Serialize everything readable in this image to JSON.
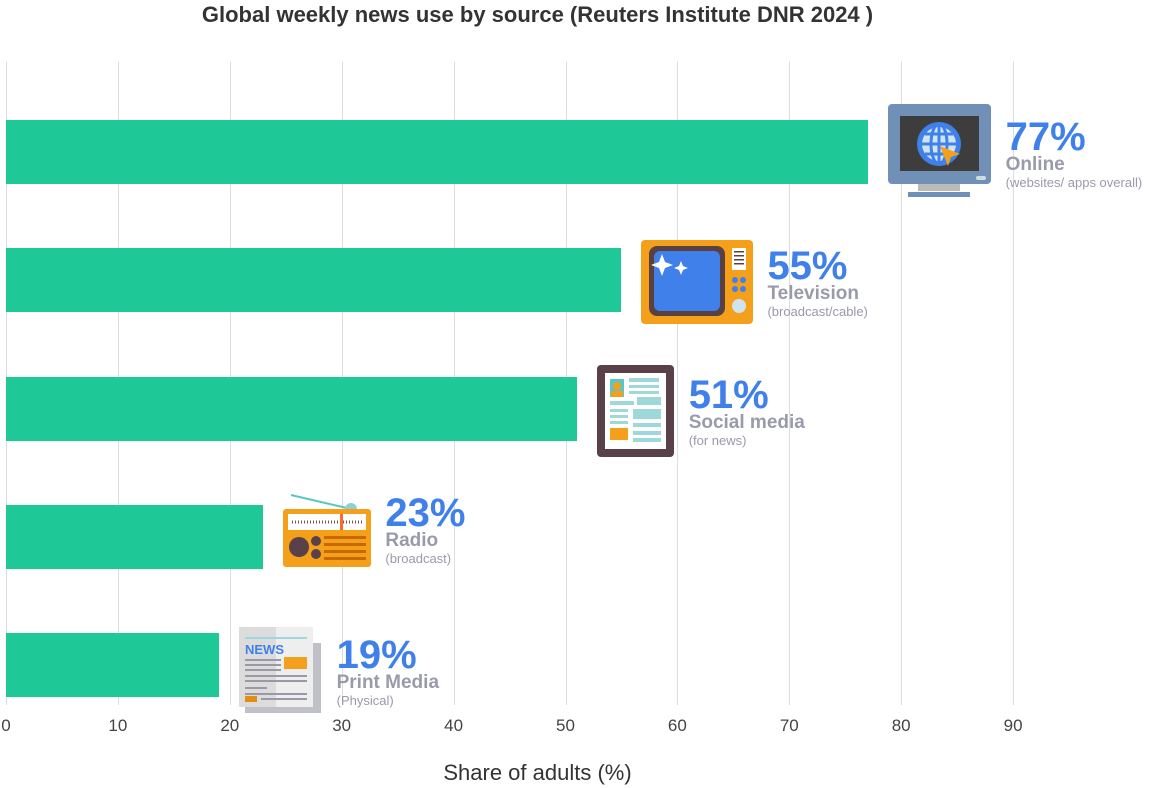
{
  "chart_data": {
    "type": "bar",
    "orientation": "horizontal",
    "title": "Global weekly news use by source (Reuters Institute DNR 2024 )",
    "xlabel": "Share of adults (%)",
    "ylabel": "",
    "xlim": [
      0,
      95
    ],
    "xticks": [
      0,
      10,
      20,
      30,
      40,
      50,
      60,
      70,
      80,
      90
    ],
    "grid": true,
    "bar_color": "#1fc997",
    "categories": [
      "Online",
      "Television",
      "Social media",
      "Radio",
      "Print Media"
    ],
    "sublabels": [
      "(websites/ apps overall)",
      "(broadcast/cable)",
      "(for news)",
      "(broadcast)",
      "(Physical)"
    ],
    "values": [
      77,
      55,
      51,
      23,
      19
    ],
    "data_labels": [
      "77%",
      "55%",
      "51%",
      "23%",
      "19%"
    ],
    "icons": [
      "computer-globe-icon",
      "television-icon",
      "tablet-social-icon",
      "radio-icon",
      "newspaper-icon"
    ]
  }
}
